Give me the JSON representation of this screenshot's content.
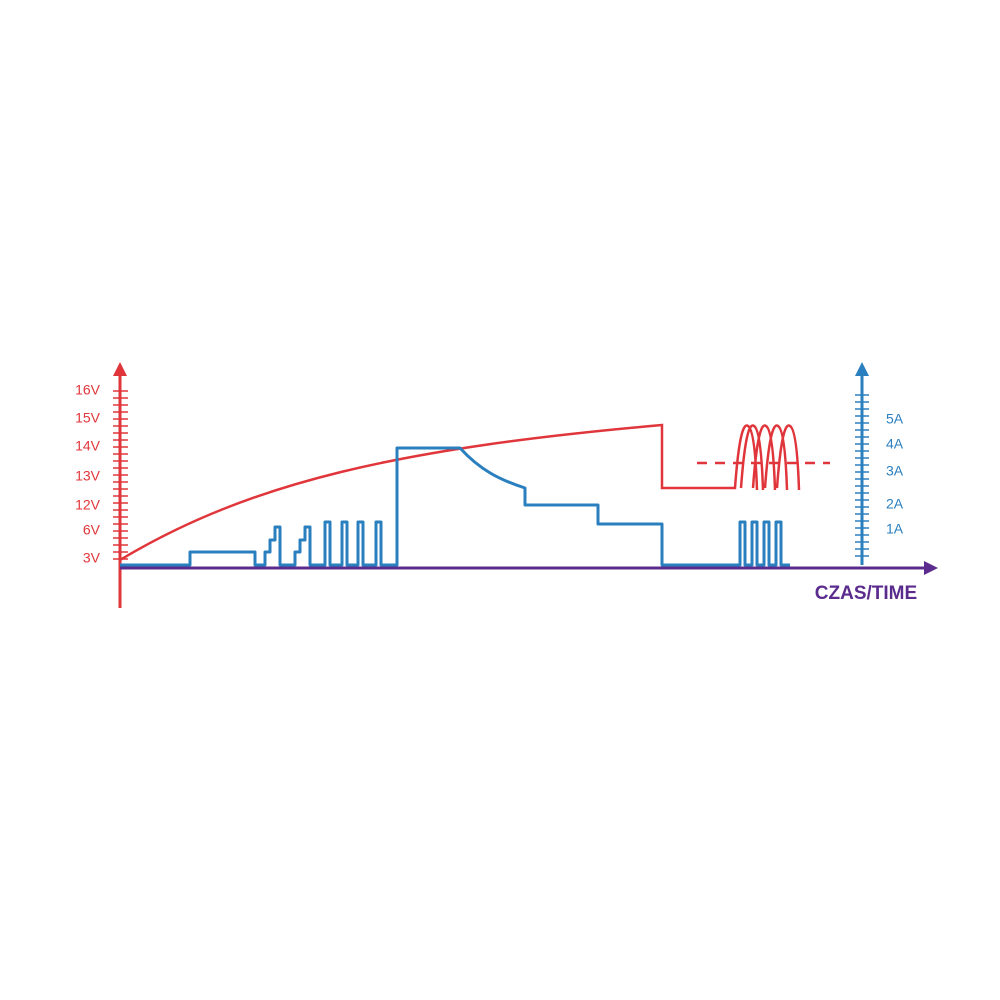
{
  "left_axis": {
    "ticks": [
      "16V",
      "15V",
      "14V",
      "13V",
      "12V",
      "6V",
      "3V"
    ]
  },
  "right_axis": {
    "ticks": [
      "5A",
      "4A",
      "3A",
      "2A",
      "1A"
    ]
  },
  "x_axis": {
    "label": "CZAS/TIME"
  }
}
